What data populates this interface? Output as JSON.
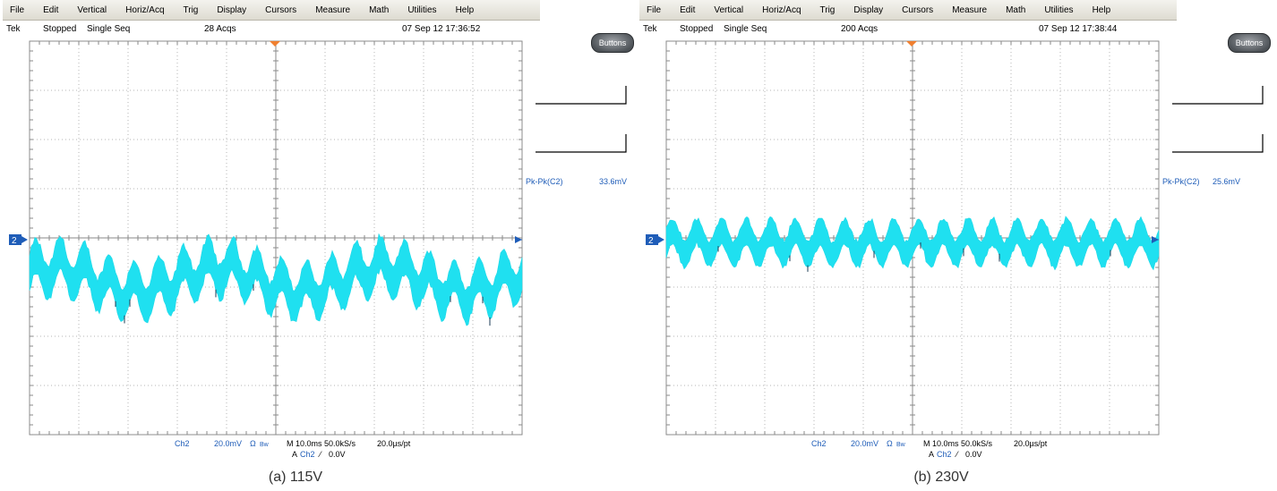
{
  "menu": [
    "File",
    "Edit",
    "Vertical",
    "Horiz/Acq",
    "Trig",
    "Display",
    "Cursors",
    "Measure",
    "Math",
    "Utilities",
    "Help"
  ],
  "colors": {
    "trace": "#1fe0f0",
    "ch2": "#1f5db8",
    "grid": "#9a9a9a",
    "marker": "#f08030"
  },
  "icons": {
    "trigger_marker": "down-triangle",
    "buttons": "rounded-pill-button",
    "level_arrow": "left-arrow"
  },
  "panels": [
    {
      "status": {
        "brand": "Tek",
        "state": "Stopped",
        "mode": "Single Seq",
        "acqs": "28 Acqs",
        "datetime": "07 Sep 12 17:36:52"
      },
      "buttons_label": "Buttons",
      "channel_marker": "2",
      "measurement": {
        "label": "Pk-Pk(C2)",
        "value": "33.6mV"
      },
      "footer": {
        "channel": "Ch2",
        "scale": "20.0mV",
        "bw": "Bw",
        "bw_symbol": "Ω",
        "timebase": "M 10.0ms 50.0kS/s",
        "pt": "20.0µs/pt",
        "trigger": "A",
        "trig_channel": "Ch2",
        "trig_slope": "⁄",
        "trig_level": "0.0V"
      },
      "caption": "(a) 115V",
      "waveform": {
        "center_div": -0.85,
        "amplitude_div": 0.55,
        "ripple_cycles": 20,
        "beat_cycles": 3
      }
    },
    {
      "status": {
        "brand": "Tek",
        "state": "Stopped",
        "mode": "Single Seq",
        "acqs": "200 Acqs",
        "datetime": "07 Sep 12 17:38:44"
      },
      "buttons_label": "Buttons",
      "channel_marker": "2",
      "measurement": {
        "label": "Pk-Pk(C2)",
        "value": "25.6mV"
      },
      "footer": {
        "channel": "Ch2",
        "scale": "20.0mV",
        "bw": "Bw",
        "bw_symbol": "Ω",
        "timebase": "M 10.0ms 50.0kS/s",
        "pt": "20.0µs/pt",
        "trigger": "A",
        "trig_channel": "Ch2",
        "trig_slope": "⁄",
        "trig_level": "0.0V"
      },
      "caption": "(b) 230V",
      "waveform": {
        "center_div": -0.1,
        "amplitude_div": 0.42,
        "ripple_cycles": 20,
        "beat_cycles": 0
      }
    }
  ]
}
